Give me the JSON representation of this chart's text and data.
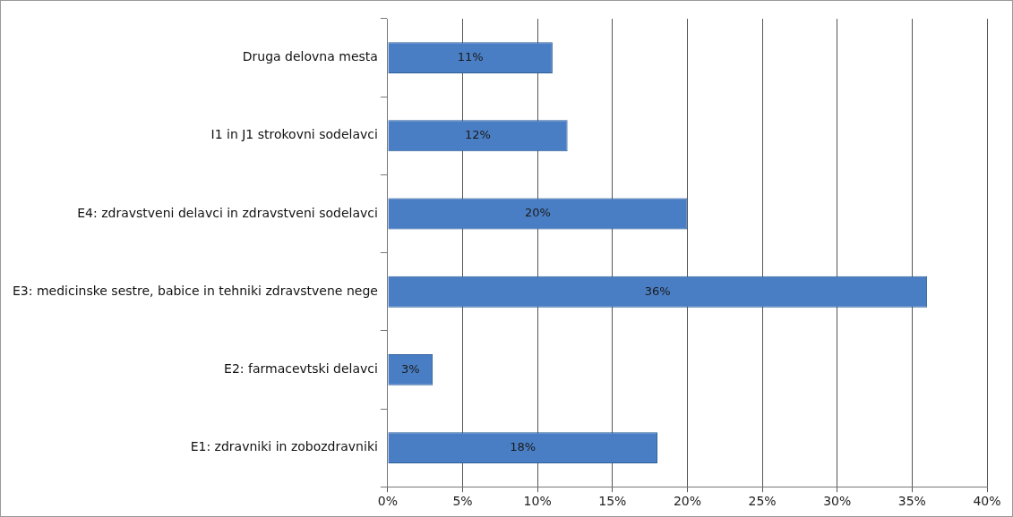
{
  "chart_data": {
    "type": "bar",
    "orientation": "horizontal",
    "categories": [
      "Druga delovna mesta",
      "I1 in J1 strokovni sodelavci",
      "E4: zdravstveni delavci in zdravstveni sodelavci",
      "E3: medicinske sestre, babice in tehniki zdravstvene nege",
      "E2: farmacevtski delavci",
      "E1: zdravniki in zobozdravniki"
    ],
    "values": [
      11,
      12,
      20,
      36,
      3,
      18
    ],
    "value_labels": [
      "11%",
      "12%",
      "20%",
      "36%",
      "3%",
      "18%"
    ],
    "color": "#4a7ec4",
    "xlim": [
      0,
      40
    ],
    "xticks": [
      {
        "value": 0,
        "label": "0%"
      },
      {
        "value": 5,
        "label": "5%"
      },
      {
        "value": 10,
        "label": "10%"
      },
      {
        "value": 15,
        "label": "15%"
      },
      {
        "value": 20,
        "label": "20%"
      },
      {
        "value": 25,
        "label": "25%"
      },
      {
        "value": 30,
        "label": "30%"
      },
      {
        "value": 35,
        "label": "35%"
      },
      {
        "value": 40,
        "label": "40%"
      }
    ],
    "grid": "x",
    "legend": false
  }
}
